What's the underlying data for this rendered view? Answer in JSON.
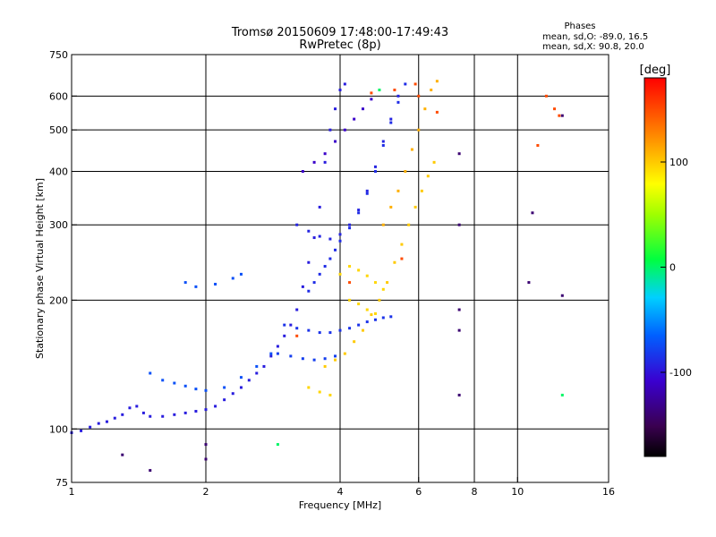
{
  "chart_data": {
    "type": "scatter",
    "title": "Tromsø 20150609 17:48:00-17:49:43",
    "subtitle": "RwPretec (8p)",
    "xlabel": "Frequency [MHz]",
    "ylabel": "Stationary phase Virtual Height [km]",
    "x_scale": "log",
    "y_scale": "log",
    "xlim": [
      1,
      16
    ],
    "ylim": [
      75,
      750
    ],
    "x_ticks": [
      1,
      2,
      4,
      6,
      8,
      10,
      16
    ],
    "x_tick_labels": [
      "1",
      "2",
      "4",
      "6",
      "8",
      "10",
      "16"
    ],
    "y_ticks": [
      75,
      100,
      200,
      300,
      400,
      500,
      600,
      750
    ],
    "y_tick_labels": [
      "75",
      "100",
      "200",
      "300",
      "400",
      "500",
      "600",
      "750"
    ],
    "x_gridlines": [
      2,
      4,
      6,
      8,
      10
    ],
    "y_gridlines": [
      100,
      200,
      300,
      400,
      500,
      600
    ],
    "grid": true,
    "stats": {
      "heading": "Phases",
      "line_o": "mean, sd,O: -89.0, 16.5",
      "line_x": "mean, sd,X:  90.8, 20.0"
    },
    "colorbar": {
      "label": "[deg]",
      "range": [
        -180,
        180
      ],
      "ticks": [
        100,
        0,
        -100
      ],
      "tick_labels": [
        "100",
        "0",
        "-100"
      ]
    },
    "series": [
      {
        "phase_deg": -95,
        "points": [
          [
            1.0,
            98
          ],
          [
            1.05,
            99
          ],
          [
            1.1,
            101
          ],
          [
            1.15,
            103
          ],
          [
            1.2,
            104
          ],
          [
            1.25,
            106
          ],
          [
            1.3,
            108
          ],
          [
            1.35,
            112
          ],
          [
            1.4,
            113
          ],
          [
            1.45,
            109
          ],
          [
            1.5,
            107
          ],
          [
            1.6,
            107
          ],
          [
            1.7,
            108
          ],
          [
            1.8,
            109
          ],
          [
            1.9,
            110
          ],
          [
            2.0,
            111
          ],
          [
            2.1,
            113
          ],
          [
            2.2,
            117
          ],
          [
            2.3,
            121
          ],
          [
            2.4,
            125
          ],
          [
            2.5,
            130
          ],
          [
            2.6,
            135
          ],
          [
            2.7,
            140
          ],
          [
            2.8,
            148
          ],
          [
            2.9,
            156
          ],
          [
            3.0,
            165
          ],
          [
            3.1,
            175
          ],
          [
            3.2,
            190
          ],
          [
            3.3,
            215
          ],
          [
            3.4,
            245
          ],
          [
            3.5,
            280
          ],
          [
            3.6,
            330
          ],
          [
            3.7,
            420
          ],
          [
            3.8,
            500
          ],
          [
            3.9,
            560
          ],
          [
            4.0,
            620
          ],
          [
            4.1,
            640
          ]
        ]
      },
      {
        "phase_deg": -88,
        "points": [
          [
            3.4,
            210
          ],
          [
            3.5,
            220
          ],
          [
            3.6,
            230
          ],
          [
            3.7,
            240
          ],
          [
            3.8,
            250
          ],
          [
            3.9,
            262
          ],
          [
            4.0,
            275
          ],
          [
            4.2,
            295
          ],
          [
            4.4,
            320
          ],
          [
            4.6,
            355
          ],
          [
            4.8,
            400
          ],
          [
            5.0,
            460
          ],
          [
            5.2,
            520
          ],
          [
            5.4,
            580
          ],
          [
            5.6,
            640
          ]
        ]
      },
      {
        "phase_deg": -92,
        "points": [
          [
            3.2,
            300
          ],
          [
            3.4,
            290
          ],
          [
            3.6,
            282
          ],
          [
            3.8,
            278
          ],
          [
            4.0,
            285
          ],
          [
            4.2,
            300
          ],
          [
            4.4,
            325
          ],
          [
            4.6,
            360
          ],
          [
            4.8,
            410
          ],
          [
            5.0,
            470
          ],
          [
            5.2,
            530
          ],
          [
            5.4,
            600
          ]
        ]
      },
      {
        "phase_deg": -85,
        "points": [
          [
            3.0,
            175
          ],
          [
            3.2,
            172
          ],
          [
            3.4,
            170
          ],
          [
            3.6,
            168
          ],
          [
            3.8,
            168
          ],
          [
            4.0,
            170
          ],
          [
            4.2,
            172
          ],
          [
            4.4,
            175
          ],
          [
            4.6,
            178
          ],
          [
            4.8,
            180
          ],
          [
            5.0,
            182
          ],
          [
            5.2,
            183
          ]
        ]
      },
      {
        "phase_deg": -80,
        "points": [
          [
            2.9,
            150
          ],
          [
            3.1,
            148
          ],
          [
            3.3,
            146
          ],
          [
            3.5,
            145
          ],
          [
            3.7,
            146
          ],
          [
            3.9,
            148
          ]
        ]
      },
      {
        "phase_deg": -110,
        "points": [
          [
            3.3,
            400
          ],
          [
            3.5,
            420
          ],
          [
            3.7,
            440
          ],
          [
            3.9,
            470
          ],
          [
            4.1,
            500
          ],
          [
            4.3,
            530
          ],
          [
            4.5,
            560
          ],
          [
            4.7,
            590
          ]
        ]
      },
      {
        "phase_deg": -72,
        "points": [
          [
            1.8,
            220
          ],
          [
            1.9,
            215
          ],
          [
            2.1,
            218
          ],
          [
            2.3,
            225
          ],
          [
            2.4,
            230
          ],
          [
            1.5,
            135
          ],
          [
            1.6,
            130
          ],
          [
            1.7,
            128
          ],
          [
            1.8,
            126
          ],
          [
            1.9,
            124
          ],
          [
            2.0,
            123
          ],
          [
            2.2,
            125
          ],
          [
            2.4,
            132
          ],
          [
            2.6,
            140
          ],
          [
            2.8,
            150
          ]
        ]
      },
      {
        "phase_deg": 100,
        "points": [
          [
            3.7,
            140
          ],
          [
            3.9,
            145
          ],
          [
            4.1,
            150
          ],
          [
            4.3,
            160
          ],
          [
            4.5,
            170
          ],
          [
            4.7,
            185
          ],
          [
            4.9,
            200
          ],
          [
            5.1,
            220
          ],
          [
            5.3,
            245
          ],
          [
            5.5,
            270
          ],
          [
            5.7,
            300
          ],
          [
            5.9,
            330
          ],
          [
            6.1,
            360
          ],
          [
            6.3,
            390
          ],
          [
            6.5,
            420
          ]
        ]
      },
      {
        "phase_deg": 110,
        "points": [
          [
            5.0,
            300
          ],
          [
            5.2,
            330
          ],
          [
            5.4,
            360
          ],
          [
            5.6,
            400
          ],
          [
            5.8,
            450
          ],
          [
            6.0,
            500
          ],
          [
            6.2,
            560
          ],
          [
            6.4,
            620
          ],
          [
            6.6,
            650
          ]
        ]
      },
      {
        "phase_deg": 95,
        "points": [
          [
            4.0,
            230
          ],
          [
            4.2,
            240
          ],
          [
            4.4,
            235
          ],
          [
            4.6,
            228
          ],
          [
            4.8,
            220
          ],
          [
            5.0,
            212
          ],
          [
            4.2,
            200
          ],
          [
            4.4,
            196
          ],
          [
            4.6,
            190
          ],
          [
            4.8,
            186
          ],
          [
            3.4,
            125
          ],
          [
            3.6,
            122
          ],
          [
            3.8,
            120
          ]
        ]
      },
      {
        "phase_deg": 150,
        "points": [
          [
            5.9,
            640
          ],
          [
            6.0,
            600
          ],
          [
            5.3,
            620
          ],
          [
            4.7,
            610
          ],
          [
            3.2,
            165
          ],
          [
            4.2,
            220
          ],
          [
            5.5,
            250
          ],
          [
            6.6,
            550
          ],
          [
            11.1,
            460
          ],
          [
            12.1,
            560
          ],
          [
            12.4,
            540
          ],
          [
            11.6,
            600
          ]
        ]
      },
      {
        "phase_deg": -140,
        "points": [
          [
            7.4,
            440
          ],
          [
            7.4,
            300
          ],
          [
            7.4,
            190
          ],
          [
            7.4,
            170
          ],
          [
            7.4,
            120
          ],
          [
            10.8,
            320
          ],
          [
            10.6,
            220
          ],
          [
            12.6,
            540
          ],
          [
            12.6,
            205
          ],
          [
            2.0,
            92
          ],
          [
            2.0,
            85
          ],
          [
            1.3,
            87
          ],
          [
            1.5,
            80
          ]
        ]
      },
      {
        "phase_deg": 0,
        "points": [
          [
            2.9,
            92
          ],
          [
            12.6,
            120
          ],
          [
            4.9,
            620
          ]
        ]
      }
    ]
  }
}
